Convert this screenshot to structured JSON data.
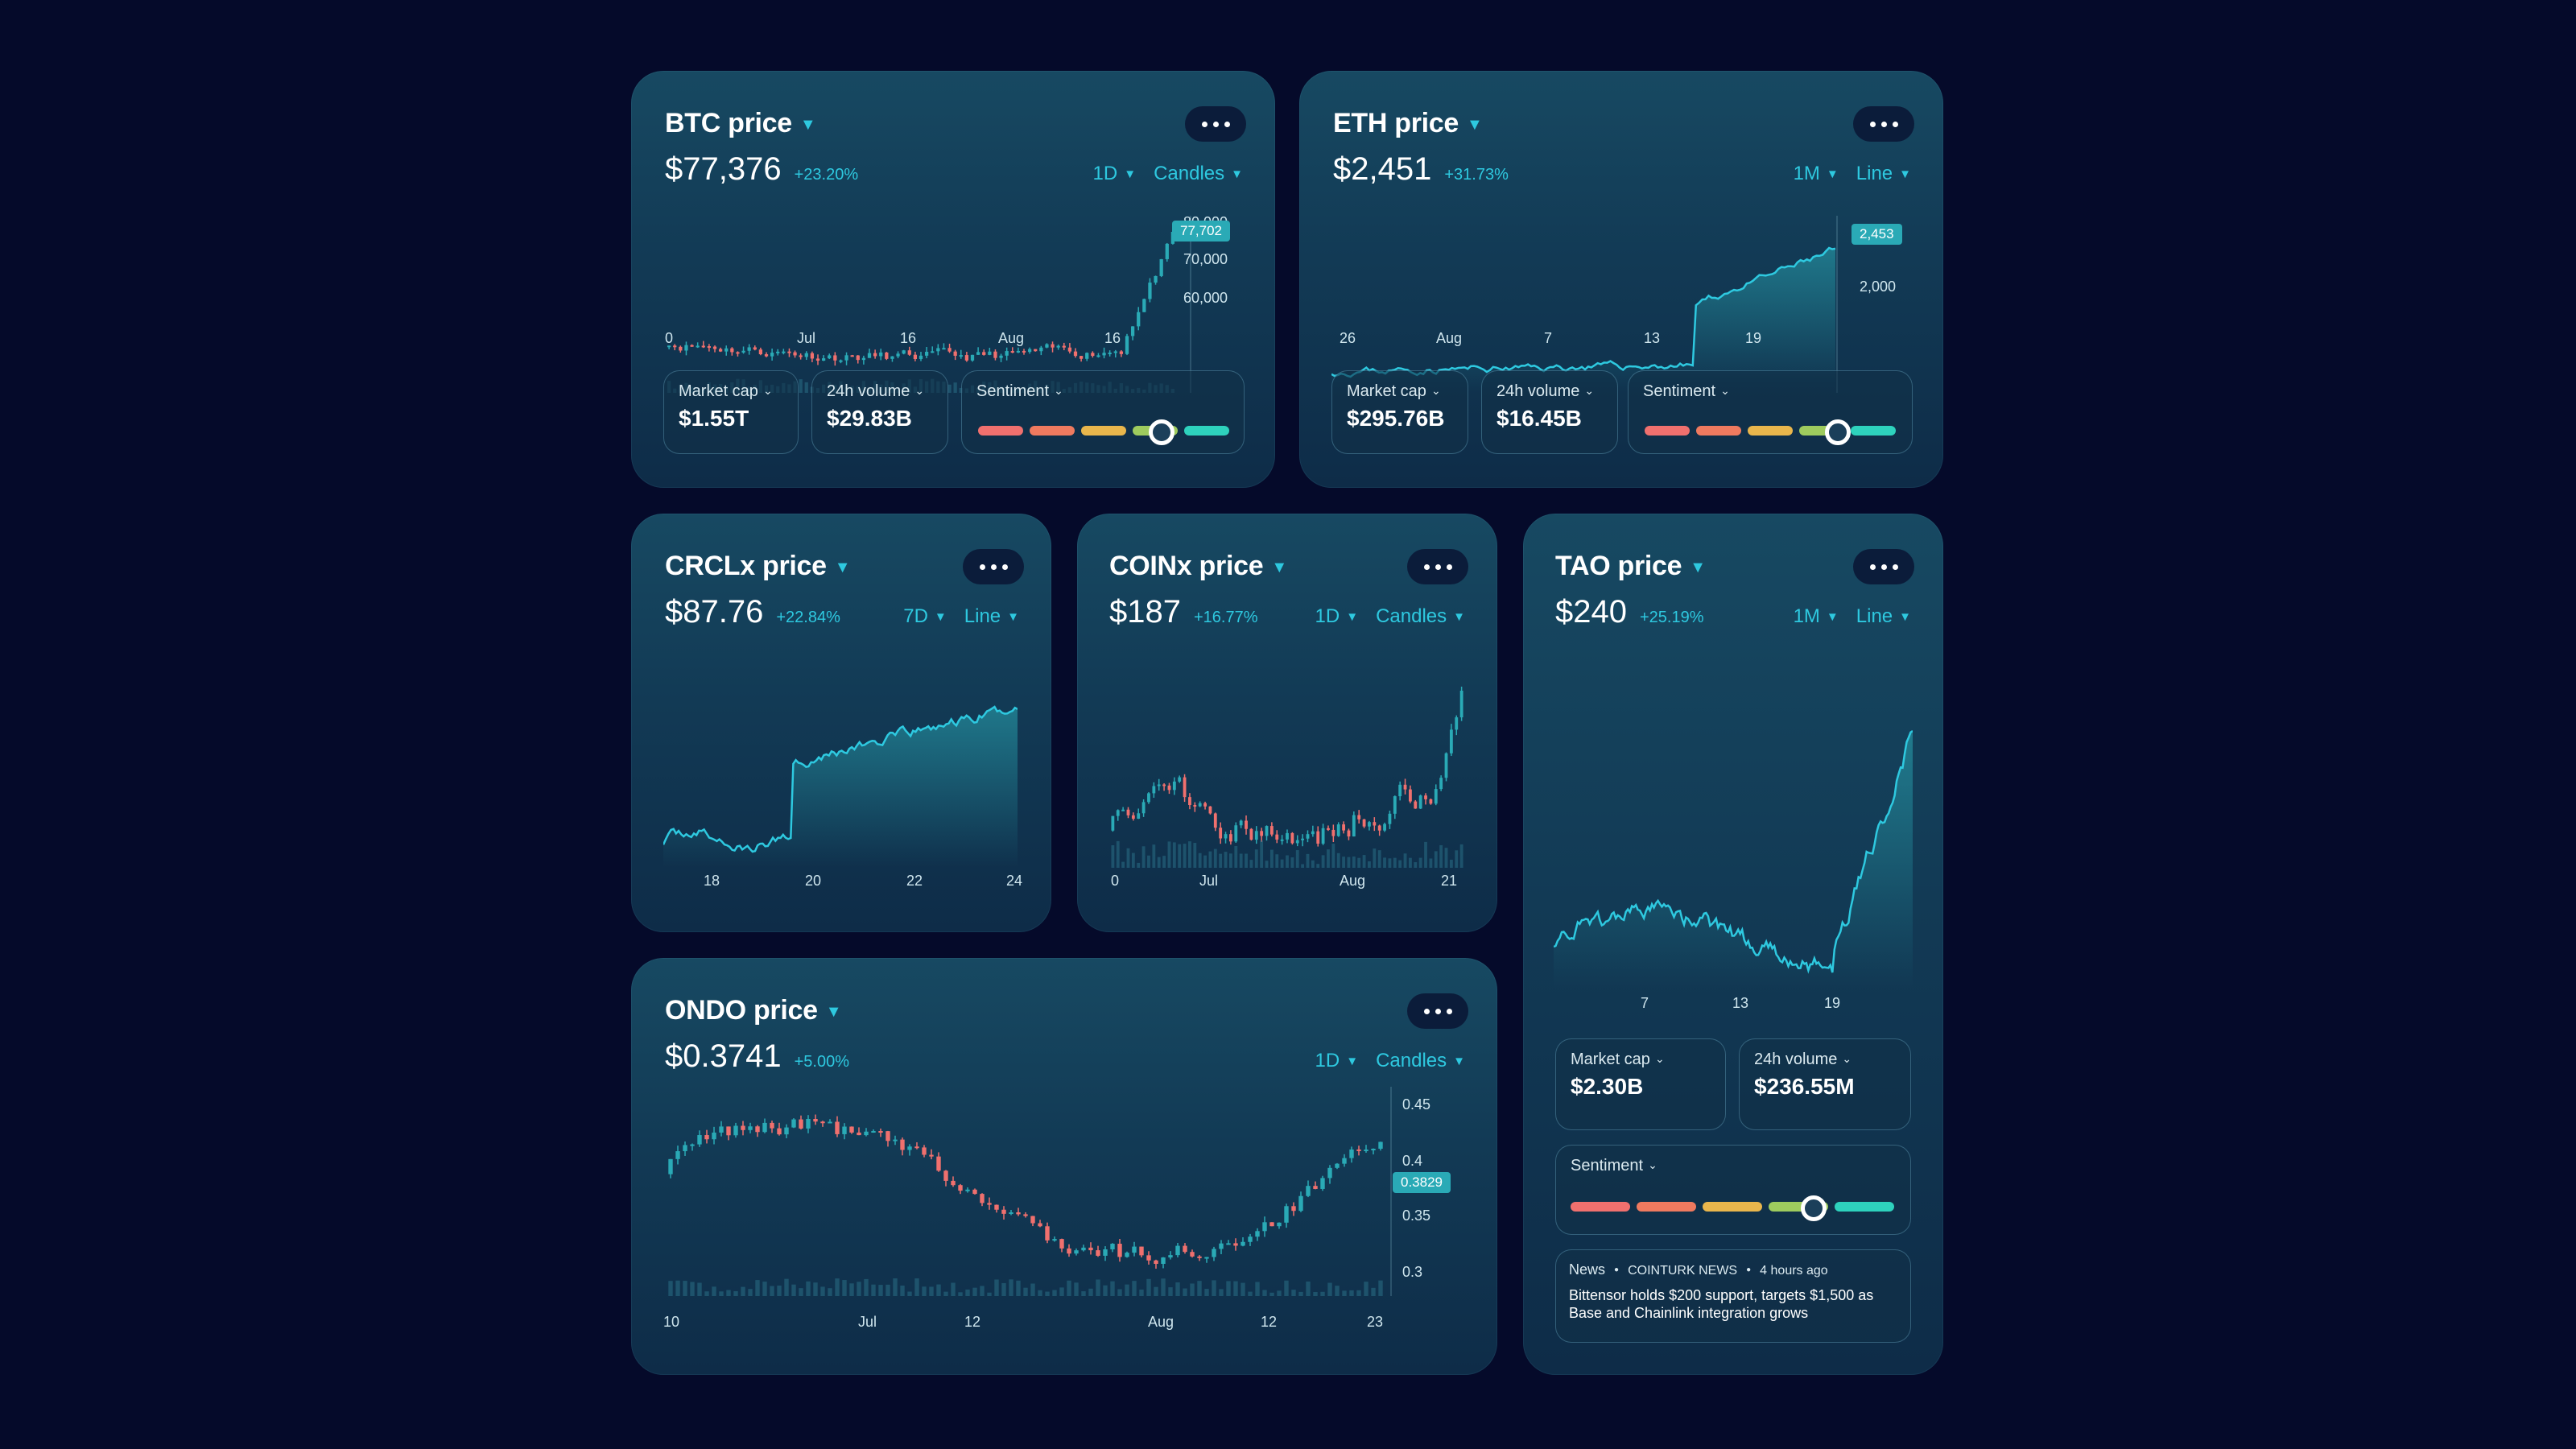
{
  "colors": {
    "background": "#050a2a",
    "accent": "#2ec9e0",
    "up": "#2aaab6",
    "down": "#f0706e"
  },
  "cards": {
    "btc": {
      "title": "BTC price",
      "price": "$77,376",
      "change": "+23.20%",
      "interval": "1D",
      "style": "Candles",
      "axis_y": [
        "80,000",
        "70,000",
        "60,000"
      ],
      "axis_x": [
        "0",
        "Jul",
        "16",
        "Aug",
        "16"
      ],
      "tag": "77,702",
      "market_cap_label": "Market cap",
      "market_cap": "$1.55T",
      "volume_label": "24h volume",
      "volume": "$29.83B",
      "sentiment_label": "Sentiment",
      "sentiment_level": 0.77
    },
    "eth": {
      "title": "ETH price",
      "price": "$2,451",
      "change": "+31.73%",
      "interval": "1M",
      "style": "Line",
      "axis_y": [
        "2,000"
      ],
      "axis_x": [
        "26",
        "Aug",
        "7",
        "13",
        "19"
      ],
      "tag": "2,453",
      "market_cap_label": "Market cap",
      "market_cap": "$295.76B",
      "volume_label": "24h volume",
      "volume": "$16.45B",
      "sentiment_label": "Sentiment",
      "sentiment_level": 0.8
    },
    "crcl": {
      "title": "CRCLx price",
      "price": "$87.76",
      "change": "+22.84%",
      "interval": "7D",
      "style": "Line",
      "axis_x": [
        "18",
        "20",
        "22",
        "24"
      ]
    },
    "coin": {
      "title": "COINx price",
      "price": "$187",
      "change": "+16.77%",
      "interval": "1D",
      "style": "Candles",
      "axis_x": [
        "0",
        "Jul",
        "Aug",
        "21"
      ]
    },
    "tao": {
      "title": "TAO price",
      "price": "$240",
      "change": "+25.19%",
      "interval": "1M",
      "style": "Line",
      "axis_x": [
        "7",
        "13",
        "19"
      ],
      "market_cap_label": "Market cap",
      "market_cap": "$2.30B",
      "volume_label": "24h volume",
      "volume": "$236.55M",
      "sentiment_label": "Sentiment",
      "sentiment_level": 0.76,
      "news_label": "News",
      "news_source": "COINTURK NEWS",
      "news_time": "4 hours ago",
      "news_headline": "Bittensor holds $200 support, targets $1,500 as Base and Chainlink integration grows"
    },
    "ondo": {
      "title": "ONDO price",
      "price": "$0.3741",
      "change": "+5.00%",
      "interval": "1D",
      "style": "Candles",
      "axis_y": [
        "0.45",
        "0.4",
        "0.35",
        "0.3"
      ],
      "axis_x": [
        "10",
        "Jul",
        "12",
        "Aug",
        "12",
        "23"
      ],
      "tag": "0.3829"
    }
  }
}
